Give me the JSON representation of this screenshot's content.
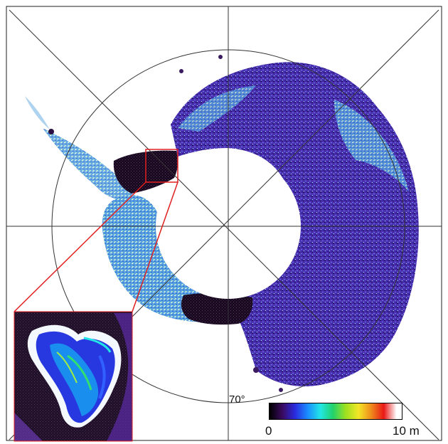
{
  "map": {
    "latitude_label": "70°",
    "colorbar": {
      "min_label": "0",
      "max_label": "10 m",
      "colors": [
        "#000000",
        "#3a0a5e",
        "#2a2adf",
        "#1a8cff",
        "#22e6e6",
        "#22d26a",
        "#9ee020",
        "#f2e626",
        "#f08c1c",
        "#e81818",
        "#ffffff"
      ]
    },
    "colors": {
      "frame": "#222222",
      "graticule": "#333333",
      "inset_border": "#e02020",
      "pole_hole": "#ffffff"
    }
  }
}
